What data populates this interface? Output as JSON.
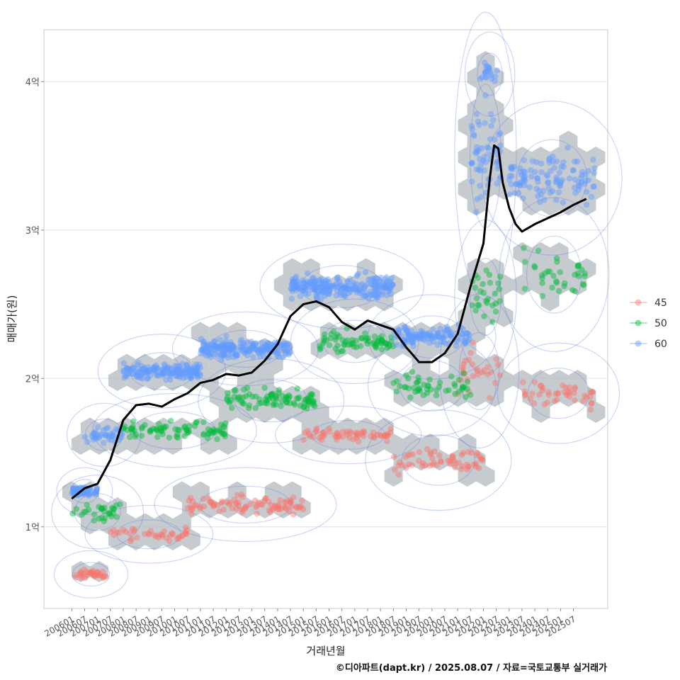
{
  "chart_data": {
    "type": "scatter",
    "title": "",
    "xlabel": "거래년월",
    "ylabel": "매매가(원)",
    "caption": "©디아파트(dapt.kr) / 2025.08.07 / 자료=국토교통부 실거래가",
    "x_ticks": [
      "200601",
      "200607",
      "200701",
      "200707",
      "200801",
      "200807",
      "200901",
      "200907",
      "201001",
      "201007",
      "201101",
      "201107",
      "201201",
      "201207",
      "201301",
      "201307",
      "201401",
      "201407",
      "201501",
      "201507",
      "201601",
      "201607",
      "201701",
      "201707",
      "201801",
      "201807",
      "201901",
      "201907",
      "202001",
      "202007",
      "202101",
      "202107",
      "202201",
      "202207",
      "202301",
      "202307",
      "202401",
      "202407",
      "202501",
      "202507"
    ],
    "y_ticks": [
      {
        "label": "1억",
        "value": 100000000
      },
      {
        "label": "2억",
        "value": 200000000
      },
      {
        "label": "3억",
        "value": 300000000
      },
      {
        "label": "4억",
        "value": 400000000
      }
    ],
    "ylim": [
      45000000,
      435000000
    ],
    "xlim_months": [
      -13,
      250
    ],
    "legend": {
      "position": "right",
      "items": [
        {
          "label": "45",
          "color": "#F8766D"
        },
        {
          "label": "50",
          "color": "#00BA38"
        },
        {
          "label": "60",
          "color": "#619CFF"
        }
      ]
    },
    "trend_line": {
      "name": "median",
      "color": "#000000",
      "points": [
        [
          0,
          1.19
        ],
        [
          6,
          1.26
        ],
        [
          12,
          1.29
        ],
        [
          18,
          1.45
        ],
        [
          24,
          1.72
        ],
        [
          30,
          1.82
        ],
        [
          36,
          1.83
        ],
        [
          42,
          1.81
        ],
        [
          48,
          1.86
        ],
        [
          54,
          1.9
        ],
        [
          60,
          1.97
        ],
        [
          66,
          1.99
        ],
        [
          72,
          2.03
        ],
        [
          78,
          2.02
        ],
        [
          84,
          2.04
        ],
        [
          90,
          2.12
        ],
        [
          96,
          2.23
        ],
        [
          102,
          2.42
        ],
        [
          108,
          2.5
        ],
        [
          114,
          2.52
        ],
        [
          120,
          2.48
        ],
        [
          126,
          2.38
        ],
        [
          132,
          2.33
        ],
        [
          138,
          2.39
        ],
        [
          144,
          2.36
        ],
        [
          150,
          2.33
        ],
        [
          156,
          2.21
        ],
        [
          162,
          2.11
        ],
        [
          168,
          2.11
        ],
        [
          174,
          2.17
        ],
        [
          180,
          2.3
        ],
        [
          186,
          2.62
        ],
        [
          192,
          2.91
        ],
        [
          195,
          3.35
        ],
        [
          197,
          3.57
        ],
        [
          199,
          3.55
        ],
        [
          201,
          3.32
        ],
        [
          204,
          3.15
        ],
        [
          207,
          3.04
        ],
        [
          210,
          2.99
        ],
        [
          216,
          3.04
        ],
        [
          222,
          3.08
        ],
        [
          228,
          3.12
        ],
        [
          234,
          3.17
        ],
        [
          240,
          3.21
        ]
      ]
    },
    "series": [
      {
        "name": "45",
        "color": "#F8766D",
        "clusters": [
          {
            "x0": 0,
            "x1": 18,
            "ymid": 0.68,
            "spread": 0.05,
            "n": 34
          },
          {
            "x0": 18,
            "x1": 54,
            "ymid": 0.95,
            "spread": 0.07,
            "n": 40
          },
          {
            "x0": 54,
            "x1": 108,
            "ymid": 1.15,
            "spread": 0.1,
            "n": 90
          },
          {
            "x0": 108,
            "x1": 150,
            "ymid": 1.62,
            "spread": 0.07,
            "n": 60
          },
          {
            "x0": 150,
            "x1": 192,
            "ymid": 1.45,
            "spread": 0.15,
            "n": 60
          },
          {
            "x0": 180,
            "x1": 200,
            "ymid": 2.05,
            "spread": 0.25,
            "n": 28
          },
          {
            "x0": 210,
            "x1": 244,
            "ymid": 1.9,
            "spread": 0.15,
            "n": 44
          }
        ]
      },
      {
        "name": "50",
        "color": "#00BA38",
        "clusters": [
          {
            "x0": 0,
            "x1": 24,
            "ymid": 1.1,
            "spread": 0.1,
            "n": 30
          },
          {
            "x0": 24,
            "x1": 72,
            "ymid": 1.65,
            "spread": 0.1,
            "n": 80
          },
          {
            "x0": 72,
            "x1": 114,
            "ymid": 1.85,
            "spread": 0.12,
            "n": 90
          },
          {
            "x0": 114,
            "x1": 150,
            "ymid": 2.25,
            "spread": 0.12,
            "n": 70
          },
          {
            "x0": 150,
            "x1": 186,
            "ymid": 1.95,
            "spread": 0.15,
            "n": 50
          },
          {
            "x0": 186,
            "x1": 200,
            "ymid": 2.55,
            "spread": 0.25,
            "n": 28
          },
          {
            "x0": 210,
            "x1": 240,
            "ymid": 2.7,
            "spread": 0.25,
            "n": 36
          }
        ]
      },
      {
        "name": "60",
        "color": "#619CFF",
        "clusters": [
          {
            "x0": 0,
            "x1": 12,
            "ymid": 1.24,
            "spread": 0.05,
            "n": 60
          },
          {
            "x0": 6,
            "x1": 24,
            "ymid": 1.62,
            "spread": 0.08,
            "n": 40
          },
          {
            "x0": 24,
            "x1": 60,
            "ymid": 2.05,
            "spread": 0.1,
            "n": 150
          },
          {
            "x0": 60,
            "x1": 102,
            "ymid": 2.2,
            "spread": 0.1,
            "n": 200
          },
          {
            "x0": 102,
            "x1": 150,
            "ymid": 2.62,
            "spread": 0.12,
            "n": 230
          },
          {
            "x0": 150,
            "x1": 186,
            "ymid": 2.28,
            "spread": 0.12,
            "n": 120
          },
          {
            "x0": 186,
            "x1": 200,
            "ymid": 3.5,
            "spread": 0.5,
            "n": 60
          },
          {
            "x0": 190,
            "x1": 200,
            "ymid": 4.05,
            "spread": 0.12,
            "n": 20
          },
          {
            "x0": 204,
            "x1": 244,
            "ymid": 3.35,
            "spread": 0.25,
            "n": 110
          }
        ]
      }
    ]
  }
}
